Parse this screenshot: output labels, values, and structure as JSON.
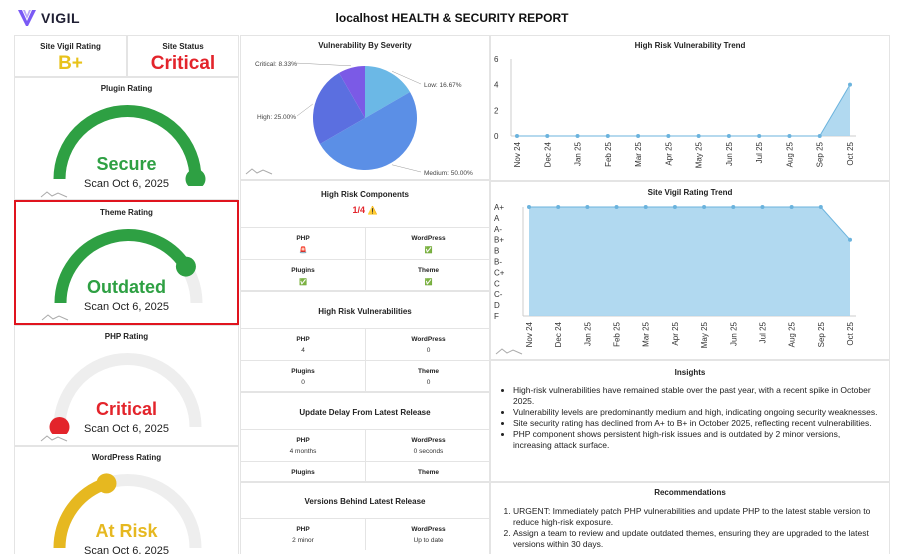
{
  "brand": {
    "name": "VIGIL",
    "color": "#7a5af5"
  },
  "report_title": "localhost HEALTH & SECURITY REPORT",
  "site_vigil_rating": {
    "label": "Site Vigil Rating",
    "value": "B+",
    "color": "#e8c21a"
  },
  "site_status": {
    "label": "Site Status",
    "value": "Critical",
    "color": "#e3242b"
  },
  "gauges": [
    {
      "title": "Plugin Rating",
      "status": "Secure",
      "scan": "Scan Oct 6, 2025",
      "color": "#2ea043",
      "fraction": 1.0
    },
    {
      "title": "Theme Rating",
      "status": "Outdated",
      "scan": "Scan Oct 6, 2025",
      "color": "#2ea043",
      "fraction": 0.82
    },
    {
      "title": "PHP Rating",
      "status": "Critical",
      "scan": "Scan Oct 6, 2025",
      "color": "#e3242b",
      "fraction": 0.0
    },
    {
      "title": "WordPress Rating",
      "status": "At Risk",
      "scan": "Scan Oct 6, 2025",
      "color": "#e6b820",
      "fraction": 0.4
    }
  ],
  "severity": {
    "title": "Vulnerability By Severity",
    "chart_data": {
      "type": "pie",
      "title": "Vulnerability By Severity",
      "labels": [
        "Low",
        "Medium",
        "High",
        "Critical"
      ],
      "values": [
        16.67,
        50.0,
        25.0,
        8.33
      ],
      "label_text": [
        "Low: 16.67%",
        "Medium: 50.00%",
        "High: 25.00%",
        "Critical: 8.33%"
      ],
      "colors": [
        "#6bb8e6",
        "#5b8fe6",
        "#5b6fe0",
        "#7b5ae6"
      ]
    }
  },
  "high_risk_components": {
    "title": "High Risk Components",
    "summary": "1/4",
    "summary_icon": "⚠️",
    "cells": [
      {
        "label": "PHP",
        "value": "🚨"
      },
      {
        "label": "WordPress",
        "value": "✅"
      },
      {
        "label": "Plugins",
        "value": "✅"
      },
      {
        "label": "Theme",
        "value": "✅"
      }
    ]
  },
  "high_risk_vulns": {
    "title": "High Risk Vulnerabilities",
    "cells": [
      {
        "label": "PHP",
        "value": "4"
      },
      {
        "label": "WordPress",
        "value": "0"
      },
      {
        "label": "Plugins",
        "value": "0"
      },
      {
        "label": "Theme",
        "value": "0"
      }
    ]
  },
  "update_delay": {
    "title": "Update Delay From Latest Release",
    "cells": [
      {
        "label": "PHP",
        "value": "4 months"
      },
      {
        "label": "WordPress",
        "value": "0 seconds"
      },
      {
        "label": "Plugins",
        "value": ""
      },
      {
        "label": "Theme",
        "value": ""
      }
    ]
  },
  "versions_behind": {
    "title": "Versions Behind Latest Release",
    "cells": [
      {
        "label": "PHP",
        "value": "2 minor"
      },
      {
        "label": "WordPress",
        "value": "Up to date"
      }
    ]
  },
  "trend_charts": [
    {
      "title": "High Risk Vulnerability Trend",
      "chart_data": {
        "type": "area",
        "title": "High Risk Vulnerability Trend",
        "categories": [
          "Nov 24",
          "Dec 24",
          "Jan 25",
          "Feb 25",
          "Mar 25",
          "Apr 25",
          "May 25",
          "Jun 25",
          "Jul 25",
          "Aug 25",
          "Sep 25",
          "Oct 25"
        ],
        "values": [
          0,
          0,
          0,
          0,
          0,
          0,
          0,
          0,
          0,
          0,
          0,
          4
        ],
        "yticks": [
          "6",
          "4",
          "2",
          "0"
        ],
        "ylim": [
          0,
          6
        ]
      }
    },
    {
      "title": "Site Vigil Rating Trend",
      "chart_data": {
        "type": "area",
        "title": "Site Vigil Rating Trend",
        "categories": [
          "Nov 24",
          "Dec 24",
          "Jan 25",
          "Feb 25",
          "Mar 25",
          "Apr 25",
          "May 25",
          "Jun 25",
          "Jul 25",
          "Aug 25",
          "Sep 25",
          "Oct 25"
        ],
        "values": [
          "A+",
          "A+",
          "A+",
          "A+",
          "A+",
          "A+",
          "A+",
          "A+",
          "A+",
          "A+",
          "A+",
          "B+"
        ],
        "yticks": [
          "A+",
          "A",
          "A-",
          "B+",
          "B",
          "B-",
          "C+",
          "C",
          "C-",
          "D",
          "F"
        ]
      }
    }
  ],
  "insights": {
    "title": "Insights",
    "items": [
      "High-risk vulnerabilities have remained stable over the past year, with a recent spike in October 2025.",
      "Vulnerability levels are predominantly medium and high, indicating ongoing security weaknesses.",
      "Site security rating has declined from A+ to B+ in October 2025, reflecting recent vulnerabilities.",
      "PHP component shows persistent high-risk issues and is outdated by 2 minor versions, increasing attack surface."
    ]
  },
  "recommendations": {
    "title": "Recommendations",
    "items": [
      "URGENT: Immediately patch PHP vulnerabilities and update PHP to the latest stable version to reduce high-risk exposure.",
      "Assign a team to review and update outdated themes, ensuring they are upgraded to the latest versions within 30 days."
    ]
  }
}
